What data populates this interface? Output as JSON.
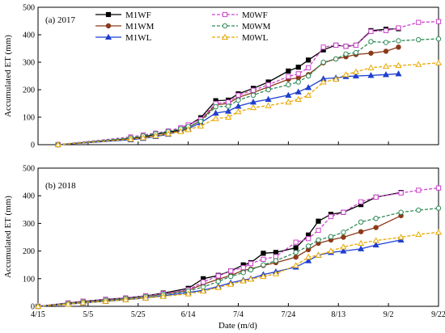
{
  "chart_data": [
    {
      "type": "line",
      "panel_label": "(a) 2017",
      "ylabel": "Accumulated ET (mm)",
      "xlabel": "",
      "xlim": [
        "2017-04-15",
        "2017-09-22"
      ],
      "ylim": [
        0,
        500
      ],
      "yticks": [
        0,
        100,
        200,
        300,
        400,
        500
      ],
      "xtick_labels": [],
      "legend_position": "top-center",
      "series": [
        {
          "name": "M1WF",
          "color": "#000000",
          "marker": "square",
          "dash": false,
          "x": [
            "2017-04-23",
            "2017-05-22",
            "2017-05-27",
            "2017-06-01",
            "2017-06-06",
            "2017-06-11",
            "2017-06-14",
            "2017-06-19",
            "2017-06-25",
            "2017-06-30",
            "2017-07-04",
            "2017-07-10",
            "2017-07-16",
            "2017-07-24",
            "2017-07-28",
            "2017-08-01",
            "2017-08-07",
            "2017-08-12",
            "2017-08-16",
            "2017-08-20",
            "2017-08-26",
            "2017-09-01",
            "2017-09-06"
          ],
          "y": [
            0,
            22,
            28,
            38,
            45,
            55,
            70,
            98,
            160,
            162,
            185,
            205,
            228,
            268,
            282,
            308,
            345,
            362,
            358,
            362,
            415,
            420,
            422
          ]
        },
        {
          "name": "M1WM",
          "color": "#8B3A1A",
          "marker": "circle",
          "dash": false,
          "x": [
            "2017-04-23",
            "2017-05-22",
            "2017-05-27",
            "2017-06-01",
            "2017-06-06",
            "2017-06-11",
            "2017-06-14",
            "2017-06-19",
            "2017-06-25",
            "2017-06-30",
            "2017-07-04",
            "2017-07-10",
            "2017-07-16",
            "2017-07-24",
            "2017-07-28",
            "2017-08-01",
            "2017-08-07",
            "2017-08-12",
            "2017-08-16",
            "2017-08-20",
            "2017-08-26",
            "2017-09-01",
            "2017-09-06"
          ],
          "y": [
            0,
            20,
            25,
            32,
            40,
            52,
            62,
            88,
            145,
            150,
            172,
            190,
            210,
            238,
            243,
            255,
            298,
            312,
            320,
            328,
            333,
            340,
            355
          ]
        },
        {
          "name": "M1WL",
          "color": "#1F3FD0",
          "marker": "triangle",
          "dash": false,
          "x": [
            "2017-04-23",
            "2017-05-22",
            "2017-05-27",
            "2017-06-01",
            "2017-06-06",
            "2017-06-11",
            "2017-06-14",
            "2017-06-19",
            "2017-06-25",
            "2017-06-30",
            "2017-07-04",
            "2017-07-10",
            "2017-07-16",
            "2017-07-24",
            "2017-07-28",
            "2017-08-01",
            "2017-08-07",
            "2017-08-12",
            "2017-08-16",
            "2017-08-20",
            "2017-08-26",
            "2017-09-01",
            "2017-09-06"
          ],
          "y": [
            0,
            18,
            23,
            30,
            38,
            50,
            58,
            80,
            115,
            122,
            140,
            155,
            165,
            180,
            192,
            208,
            240,
            243,
            248,
            250,
            252,
            255,
            258
          ]
        },
        {
          "name": "M0WF",
          "color": "#CC44CC",
          "marker": "square-open",
          "dash": true,
          "x": [
            "2017-04-23",
            "2017-05-22",
            "2017-05-27",
            "2017-06-01",
            "2017-06-06",
            "2017-06-11",
            "2017-06-14",
            "2017-06-19",
            "2017-06-25",
            "2017-06-30",
            "2017-07-04",
            "2017-07-10",
            "2017-07-16",
            "2017-07-24",
            "2017-07-28",
            "2017-08-01",
            "2017-08-07",
            "2017-08-12",
            "2017-08-16",
            "2017-08-20",
            "2017-08-26",
            "2017-09-01",
            "2017-09-06",
            "2017-09-14",
            "2017-09-22"
          ],
          "y": [
            0,
            28,
            35,
            42,
            50,
            62,
            72,
            92,
            150,
            155,
            180,
            198,
            218,
            248,
            258,
            280,
            355,
            362,
            358,
            362,
            412,
            415,
            425,
            445,
            448
          ]
        },
        {
          "name": "M0WM",
          "color": "#2E8B57",
          "marker": "circle-open",
          "dash": true,
          "x": [
            "2017-04-23",
            "2017-05-22",
            "2017-05-27",
            "2017-06-01",
            "2017-06-06",
            "2017-06-11",
            "2017-06-14",
            "2017-06-19",
            "2017-06-25",
            "2017-06-30",
            "2017-07-04",
            "2017-07-10",
            "2017-07-16",
            "2017-07-24",
            "2017-07-28",
            "2017-08-01",
            "2017-08-07",
            "2017-08-12",
            "2017-08-16",
            "2017-08-20",
            "2017-08-26",
            "2017-09-01",
            "2017-09-06",
            "2017-09-14",
            "2017-09-22"
          ],
          "y": [
            0,
            25,
            32,
            40,
            48,
            58,
            66,
            85,
            138,
            140,
            162,
            180,
            200,
            218,
            228,
            250,
            300,
            312,
            330,
            335,
            375,
            372,
            378,
            382,
            385
          ]
        },
        {
          "name": "M0WL",
          "color": "#E8A800",
          "marker": "triangle-open",
          "dash": true,
          "x": [
            "2017-04-23",
            "2017-05-22",
            "2017-05-27",
            "2017-06-01",
            "2017-06-06",
            "2017-06-11",
            "2017-06-14",
            "2017-06-19",
            "2017-06-25",
            "2017-06-30",
            "2017-07-04",
            "2017-07-10",
            "2017-07-16",
            "2017-07-24",
            "2017-07-28",
            "2017-08-01",
            "2017-08-07",
            "2017-08-12",
            "2017-08-16",
            "2017-08-20",
            "2017-08-26",
            "2017-09-01",
            "2017-09-06",
            "2017-09-14",
            "2017-09-22"
          ],
          "y": [
            0,
            20,
            25,
            32,
            40,
            48,
            55,
            68,
            95,
            100,
            120,
            135,
            142,
            155,
            165,
            180,
            228,
            238,
            255,
            265,
            280,
            285,
            288,
            292,
            298
          ]
        }
      ]
    },
    {
      "type": "line",
      "panel_label": "(b) 2018",
      "ylabel": "Accumulated ET (mm)",
      "xlabel": "Date (m/d)",
      "xlim": [
        "2018-04-15",
        "2018-09-22"
      ],
      "ylim": [
        0,
        500
      ],
      "yticks": [
        0,
        100,
        200,
        300,
        400,
        500
      ],
      "xtick_labels": [
        "4/15",
        "5/5",
        "5/25",
        "6/14",
        "7/4",
        "7/24",
        "8/13",
        "9/2",
        "9/22"
      ],
      "series": [
        {
          "name": "M1WF",
          "color": "#000000",
          "marker": "square",
          "dash": false,
          "x": [
            "2018-04-15",
            "2018-04-27",
            "2018-05-03",
            "2018-05-12",
            "2018-05-20",
            "2018-05-28",
            "2018-06-04",
            "2018-06-14",
            "2018-06-20",
            "2018-06-26",
            "2018-07-01",
            "2018-07-06",
            "2018-07-09",
            "2018-07-14",
            "2018-07-19",
            "2018-07-27",
            "2018-08-01",
            "2018-08-05",
            "2018-08-10",
            "2018-08-15",
            "2018-08-22",
            "2018-08-28",
            "2018-09-07"
          ],
          "y": [
            0,
            12,
            18,
            25,
            30,
            38,
            48,
            65,
            100,
            112,
            128,
            150,
            158,
            192,
            195,
            212,
            258,
            308,
            333,
            340,
            368,
            395,
            412
          ]
        },
        {
          "name": "M1WM",
          "color": "#8B3A1A",
          "marker": "circle",
          "dash": false,
          "x": [
            "2018-04-15",
            "2018-04-27",
            "2018-05-03",
            "2018-05-12",
            "2018-05-20",
            "2018-05-28",
            "2018-06-04",
            "2018-06-14",
            "2018-06-20",
            "2018-06-26",
            "2018-07-01",
            "2018-07-06",
            "2018-07-09",
            "2018-07-14",
            "2018-07-19",
            "2018-07-27",
            "2018-08-01",
            "2018-08-05",
            "2018-08-10",
            "2018-08-15",
            "2018-08-22",
            "2018-08-28",
            "2018-09-07"
          ],
          "y": [
            0,
            10,
            15,
            22,
            28,
            35,
            44,
            58,
            80,
            98,
            112,
            130,
            135,
            148,
            158,
            178,
            205,
            228,
            240,
            250,
            270,
            285,
            328
          ]
        },
        {
          "name": "M1WL",
          "color": "#1F3FD0",
          "marker": "triangle",
          "dash": false,
          "x": [
            "2018-04-15",
            "2018-04-27",
            "2018-05-03",
            "2018-05-12",
            "2018-05-20",
            "2018-05-28",
            "2018-06-04",
            "2018-06-14",
            "2018-06-20",
            "2018-06-26",
            "2018-07-01",
            "2018-07-06",
            "2018-07-09",
            "2018-07-14",
            "2018-07-19",
            "2018-07-27",
            "2018-08-01",
            "2018-08-05",
            "2018-08-10",
            "2018-08-15",
            "2018-08-22",
            "2018-08-28",
            "2018-09-07"
          ],
          "y": [
            0,
            8,
            12,
            18,
            24,
            30,
            38,
            50,
            58,
            72,
            85,
            95,
            100,
            115,
            125,
            142,
            165,
            185,
            195,
            200,
            208,
            222,
            240
          ]
        },
        {
          "name": "M0WF",
          "color": "#CC44CC",
          "marker": "square-open",
          "dash": true,
          "x": [
            "2018-04-15",
            "2018-04-27",
            "2018-05-03",
            "2018-05-12",
            "2018-05-20",
            "2018-05-28",
            "2018-06-04",
            "2018-06-14",
            "2018-06-20",
            "2018-06-26",
            "2018-07-01",
            "2018-07-06",
            "2018-07-09",
            "2018-07-14",
            "2018-07-19",
            "2018-07-27",
            "2018-08-01",
            "2018-08-05",
            "2018-08-10",
            "2018-08-15",
            "2018-08-22",
            "2018-08-28",
            "2018-09-07",
            "2018-09-14",
            "2018-09-22"
          ],
          "y": [
            0,
            12,
            18,
            25,
            30,
            38,
            46,
            60,
            88,
            110,
            128,
            140,
            155,
            170,
            180,
            232,
            245,
            275,
            325,
            340,
            378,
            395,
            410,
            420,
            428
          ]
        },
        {
          "name": "M0WM",
          "color": "#2E8B57",
          "marker": "circle-open",
          "dash": true,
          "x": [
            "2018-04-15",
            "2018-04-27",
            "2018-05-03",
            "2018-05-12",
            "2018-05-20",
            "2018-05-28",
            "2018-06-04",
            "2018-06-14",
            "2018-06-20",
            "2018-06-26",
            "2018-07-01",
            "2018-07-06",
            "2018-07-09",
            "2018-07-14",
            "2018-07-19",
            "2018-07-27",
            "2018-08-01",
            "2018-08-05",
            "2018-08-10",
            "2018-08-15",
            "2018-08-22",
            "2018-08-28",
            "2018-09-07",
            "2018-09-14",
            "2018-09-22"
          ],
          "y": [
            0,
            10,
            16,
            22,
            28,
            35,
            42,
            55,
            70,
            90,
            108,
            122,
            132,
            150,
            165,
            195,
            218,
            240,
            252,
            268,
            305,
            318,
            340,
            348,
            355
          ]
        },
        {
          "name": "M0WL",
          "color": "#E8A800",
          "marker": "triangle-open",
          "dash": true,
          "x": [
            "2018-04-15",
            "2018-04-27",
            "2018-05-03",
            "2018-05-12",
            "2018-05-20",
            "2018-05-28",
            "2018-06-04",
            "2018-06-14",
            "2018-06-20",
            "2018-06-26",
            "2018-07-01",
            "2018-07-06",
            "2018-07-09",
            "2018-07-14",
            "2018-07-19",
            "2018-07-27",
            "2018-08-01",
            "2018-08-05",
            "2018-08-10",
            "2018-08-15",
            "2018-08-22",
            "2018-08-28",
            "2018-09-07",
            "2018-09-14",
            "2018-09-22"
          ],
          "y": [
            0,
            8,
            13,
            18,
            24,
            30,
            36,
            45,
            55,
            68,
            80,
            92,
            98,
            108,
            118,
            148,
            178,
            185,
            200,
            215,
            228,
            238,
            250,
            260,
            268
          ]
        }
      ]
    }
  ]
}
